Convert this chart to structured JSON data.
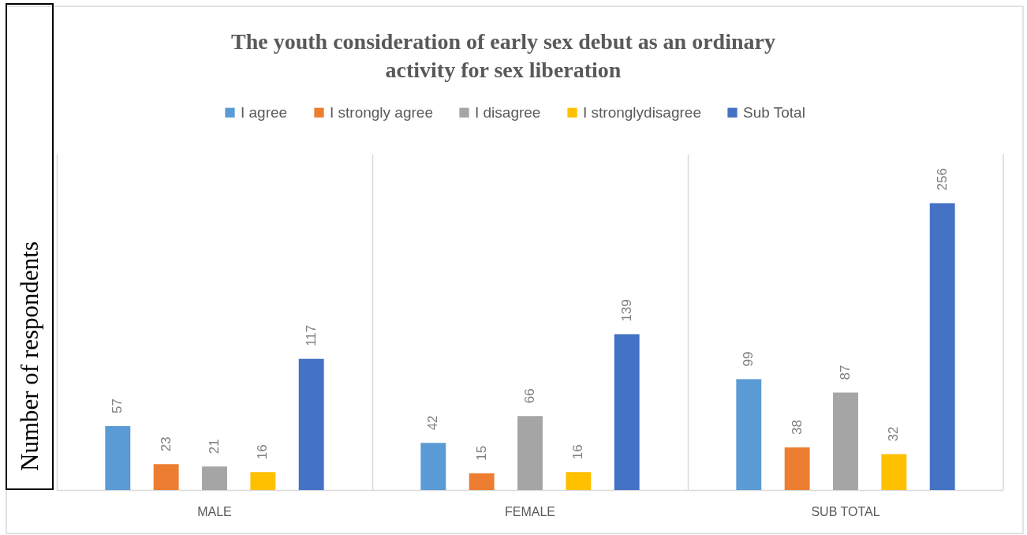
{
  "chart_data": {
    "type": "bar",
    "title": "The youth consideration of early sex debut as an ordinary activity for sex liberation",
    "ylabel": "Number of respondents",
    "categories": [
      "MALE",
      "FEMALE",
      "SUB TOTAL"
    ],
    "series": [
      {
        "name": "I agree",
        "color": "#5b9bd5",
        "values": [
          57,
          42,
          99
        ]
      },
      {
        "name": "I strongly agree",
        "color": "#ed7d31",
        "values": [
          23,
          15,
          38
        ]
      },
      {
        "name": "I disagree",
        "color": "#a5a5a5",
        "values": [
          21,
          66,
          87
        ]
      },
      {
        "name": "I stronglydisagree",
        "color": "#ffc000",
        "values": [
          16,
          16,
          32
        ]
      },
      {
        "name": "Sub Total",
        "color": "#4472c4",
        "values": [
          117,
          139,
          256
        ]
      }
    ],
    "data_labels": true,
    "grid": "x",
    "legend": "top",
    "tick_labels": "x"
  }
}
